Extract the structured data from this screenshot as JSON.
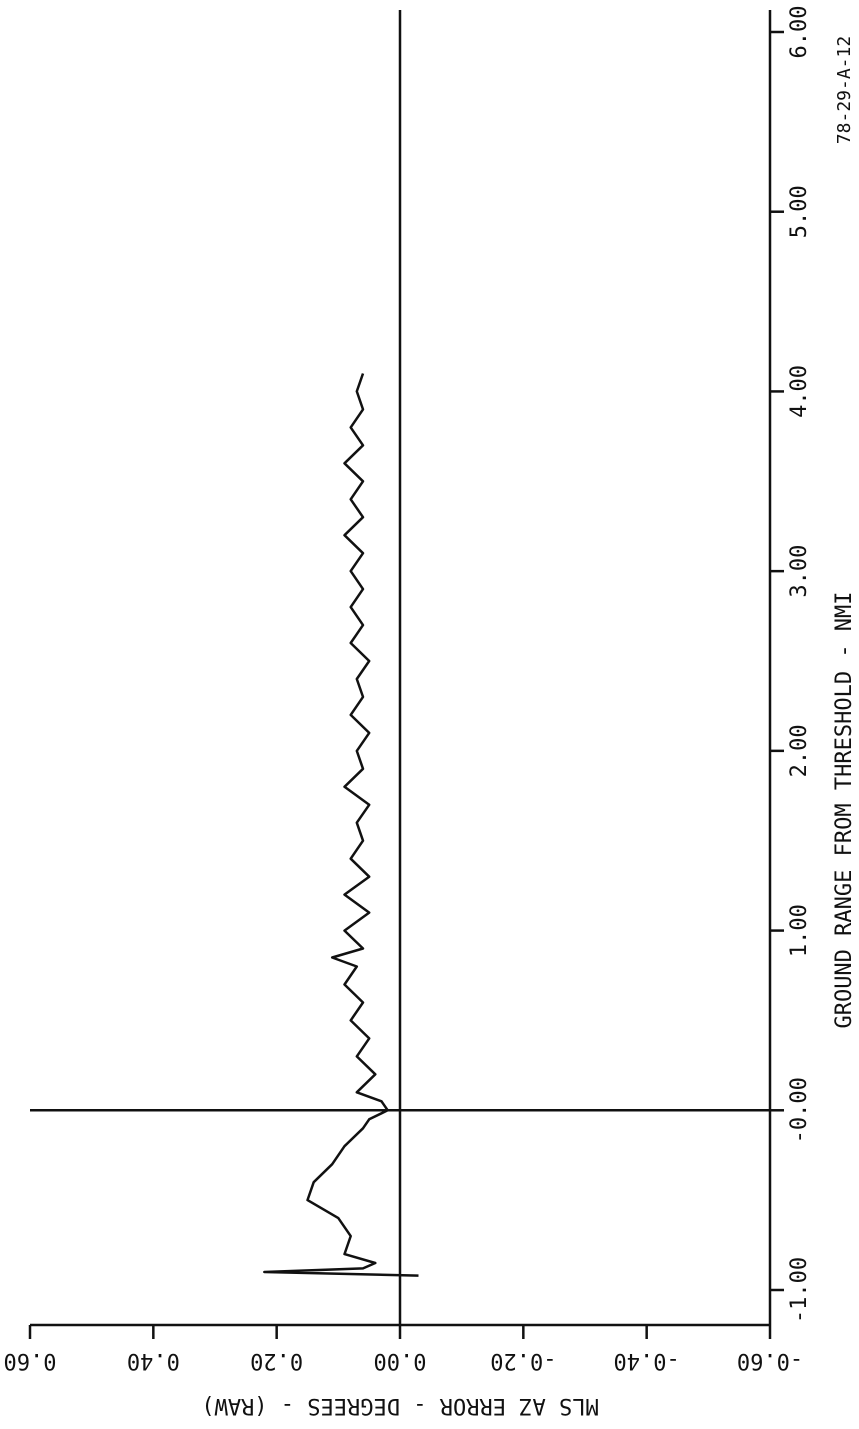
{
  "chart_data": {
    "type": "line",
    "x_label": "GROUND RANGE FROM THRESHOLD - NMI",
    "y_label": "MLS AZ ERROR - DEGREES - (RAW)",
    "annotation": "78-29-A-12",
    "x": [
      -0.92,
      -0.9,
      -0.88,
      -0.85,
      -0.8,
      -0.7,
      -0.6,
      -0.5,
      -0.4,
      -0.3,
      -0.2,
      -0.1,
      -0.05,
      0.0,
      0.05,
      0.1,
      0.2,
      0.3,
      0.4,
      0.5,
      0.6,
      0.7,
      0.8,
      0.85,
      0.9,
      1.0,
      1.1,
      1.2,
      1.3,
      1.4,
      1.5,
      1.6,
      1.7,
      1.8,
      1.9,
      2.0,
      2.1,
      2.2,
      2.3,
      2.4,
      2.5,
      2.6,
      2.7,
      2.8,
      2.9,
      3.0,
      3.1,
      3.2,
      3.3,
      3.4,
      3.5,
      3.6,
      3.7,
      3.8,
      3.9,
      4.0,
      4.1
    ],
    "series": [
      {
        "name": "MLS AZ ERROR",
        "color": "#111111",
        "values": [
          -0.03,
          0.22,
          0.06,
          0.04,
          0.09,
          0.08,
          0.1,
          0.15,
          0.14,
          0.11,
          0.09,
          0.06,
          0.05,
          0.02,
          0.03,
          0.07,
          0.04,
          0.07,
          0.05,
          0.08,
          0.06,
          0.09,
          0.07,
          0.11,
          0.06,
          0.09,
          0.05,
          0.09,
          0.05,
          0.08,
          0.06,
          0.07,
          0.05,
          0.09,
          0.06,
          0.07,
          0.05,
          0.08,
          0.06,
          0.07,
          0.05,
          0.08,
          0.06,
          0.08,
          0.06,
          0.08,
          0.06,
          0.09,
          0.06,
          0.08,
          0.06,
          0.09,
          0.06,
          0.08,
          0.06,
          0.07,
          0.06
        ]
      }
    ],
    "xlim": [
      -1,
      6
    ],
    "xticks": [
      {
        "value": -1,
        "label": "-1.00"
      },
      {
        "value": 0,
        "label": "-0.00"
      },
      {
        "value": 1,
        "label": "1.00"
      },
      {
        "value": 2,
        "label": "2.00"
      },
      {
        "value": 3,
        "label": "3.00"
      },
      {
        "value": 4,
        "label": "4.00"
      },
      {
        "value": 5,
        "label": "5.00"
      },
      {
        "value": 6,
        "label": "6.00"
      }
    ],
    "ylim": [
      0.6,
      -0.6
    ],
    "yticks": [
      {
        "value": 0.6,
        "label": "0.60"
      },
      {
        "value": 0.4,
        "label": "0.40"
      },
      {
        "value": 0.2,
        "label": "0.20"
      },
      {
        "value": 0,
        "label": "0.00"
      },
      {
        "value": -0.2,
        "label": "-0.20"
      },
      {
        "value": -0.4,
        "label": "-0.40"
      },
      {
        "value": -0.6,
        "label": "-0.60"
      }
    ]
  }
}
